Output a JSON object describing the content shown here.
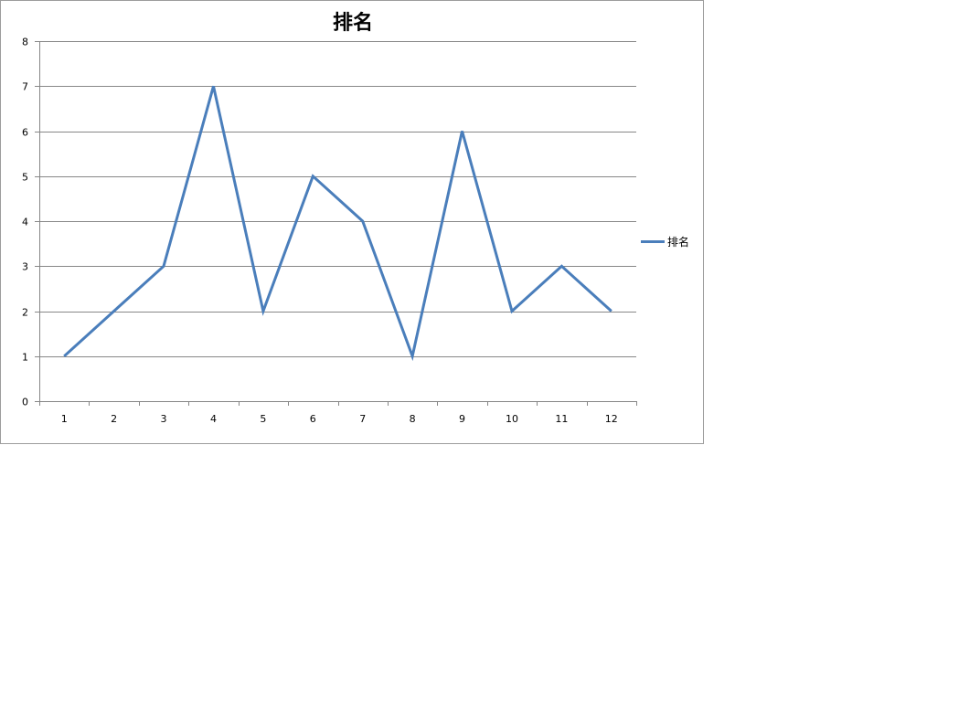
{
  "chart_data": {
    "type": "line",
    "title": "排名",
    "xlabel": "",
    "ylabel": "",
    "categories": [
      "1",
      "2",
      "3",
      "4",
      "5",
      "6",
      "7",
      "8",
      "9",
      "10",
      "11",
      "12"
    ],
    "series": [
      {
        "name": "排名",
        "values": [
          1,
          2,
          3,
          7,
          2,
          5,
          4,
          1,
          6,
          2,
          3,
          2
        ],
        "color": "#4a7ebb"
      }
    ],
    "ylim": [
      0,
      8
    ],
    "yticks": [
      "0",
      "1",
      "2",
      "3",
      "4",
      "5",
      "6",
      "7",
      "8"
    ],
    "grid": true,
    "legend_position": "right"
  }
}
